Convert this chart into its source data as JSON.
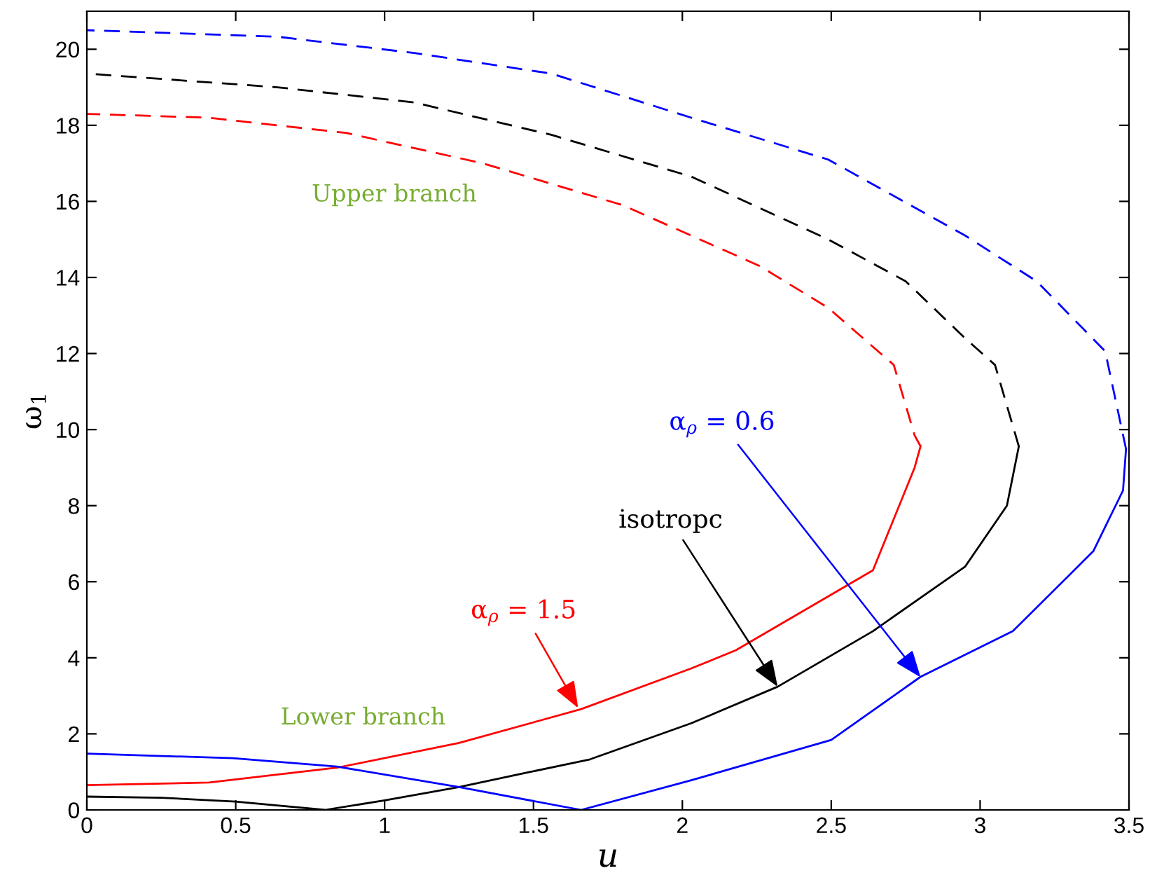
{
  "chart_data": {
    "type": "line",
    "xlabel": "u",
    "ylabel": "ω$_{1}$",
    "xlim": [
      0,
      3.5
    ],
    "ylim": [
      0,
      21
    ],
    "xticks": [
      0,
      0.5,
      1,
      1.5,
      2,
      2.5,
      3,
      3.5
    ],
    "yticks": [
      0,
      2,
      4,
      6,
      8,
      10,
      12,
      14,
      16,
      18,
      20
    ],
    "grid": false,
    "legend": false,
    "marker": "none",
    "series": [
      {
        "color": "#ff0000",
        "line_style": "solid",
        "x": [
          0,
          0.41,
          0.84,
          1.25,
          1.66,
          2.03,
          2.18,
          2.64,
          2.78,
          2.8
        ],
        "values": [
          0.65,
          0.72,
          1.11,
          1.76,
          2.65,
          3.72,
          4.2,
          6.3,
          9.0,
          9.56
        ]
      },
      {
        "color": "#ff0000",
        "line_style": "dashed",
        "x": [
          2.8,
          2.78,
          2.71,
          2.49,
          2.26,
          1.8,
          1.33,
          0.87,
          0.41,
          0
        ],
        "values": [
          9.56,
          9.85,
          11.7,
          13.2,
          14.3,
          15.9,
          17.0,
          17.8,
          18.2,
          18.3
        ]
      },
      {
        "color": "#000000",
        "line_style": "solid",
        "x": [
          0,
          0.25,
          0.5,
          0.8,
          1.0,
          1.25,
          1.49,
          1.69,
          2.03,
          2.32,
          2.64,
          2.95,
          3.09,
          3.13
        ],
        "values": [
          0.35,
          0.32,
          0.22,
          0,
          0.25,
          0.6,
          1.0,
          1.33,
          2.28,
          3.24,
          4.7,
          6.4,
          8.0,
          9.56
        ]
      },
      {
        "color": "#000000",
        "line_style": "dashed",
        "x": [
          3.13,
          3.05,
          2.95,
          2.75,
          2.49,
          2.03,
          1.56,
          1.1,
          0.64,
          0
        ],
        "values": [
          9.56,
          11.7,
          12.4,
          13.9,
          15.0,
          16.65,
          17.75,
          18.6,
          19.0,
          19.36
        ]
      },
      {
        "color": "#0000ff",
        "line_style": "solid",
        "x": [
          0,
          0.49,
          0.84,
          1.25,
          1.66,
          2.03,
          2.5,
          2.8,
          3.11,
          3.38,
          3.48,
          3.49
        ],
        "values": [
          1.48,
          1.36,
          1.14,
          0.6,
          0,
          0.78,
          1.84,
          3.5,
          4.7,
          6.8,
          8.4,
          9.49
        ]
      },
      {
        "color": "#0000ff",
        "line_style": "dashed",
        "x": [
          3.49,
          3.42,
          3.19,
          2.95,
          2.49,
          2.03,
          1.56,
          1.1,
          0.64,
          0
        ],
        "values": [
          9.49,
          12.06,
          13.9,
          15.1,
          17.1,
          18.2,
          19.36,
          19.9,
          20.33,
          20.5
        ]
      }
    ],
    "annotations": [
      {
        "text": "α$_{ρ}$ = 1.5",
        "x": 1.65,
        "y": 2.68
      },
      {
        "text": "isotropc",
        "x": 2.32,
        "y": 3.24
      },
      {
        "text": "α$_{ρ}$ = 0.6",
        "x": 2.8,
        "y": 3.49
      },
      "Upper branch",
      "Lower branch"
    ]
  }
}
